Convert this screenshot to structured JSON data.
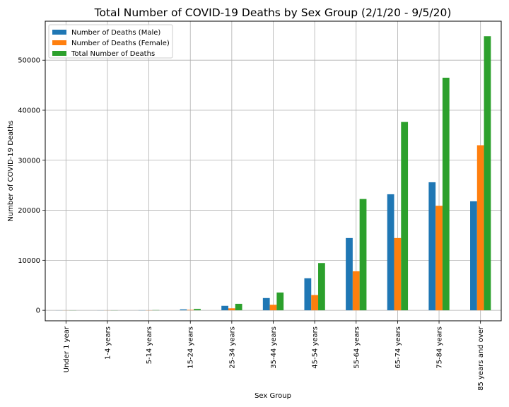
{
  "chart_data": {
    "type": "bar",
    "title": "Total Number of COVID-19 Deaths by Sex Group (2/1/20 - 9/5/20)",
    "xlabel": "Sex Group",
    "ylabel": "Number of COVID-19 Deaths",
    "categories": [
      "Under 1 year",
      "1-4 years",
      "5-14 years",
      "15-24 years",
      "25-34 years",
      "35-44 years",
      "45-54 years",
      "55-64 years",
      "65-74 years",
      "75-84 years",
      "85 years and over"
    ],
    "series": [
      {
        "name": "Number of Deaths (Male)",
        "color": "#1f77b4",
        "values": [
          10,
          10,
          25,
          180,
          900,
          2450,
          6400,
          14450,
          23200,
          25600,
          21800
        ]
      },
      {
        "name": "Number of Deaths (Female)",
        "color": "#ff7f0e",
        "values": [
          10,
          10,
          20,
          90,
          400,
          1100,
          3050,
          7800,
          14450,
          20900,
          33000
        ]
      },
      {
        "name": "Total Number of Deaths",
        "color": "#2ca02c",
        "values": [
          20,
          20,
          45,
          270,
          1300,
          3550,
          9450,
          22250,
          37650,
          46500,
          54800
        ]
      }
    ],
    "ylim": [
      -2100,
      57800
    ],
    "yticks": [
      0,
      10000,
      20000,
      30000,
      40000,
      50000
    ],
    "grid": true,
    "legend_position": "top-left"
  }
}
